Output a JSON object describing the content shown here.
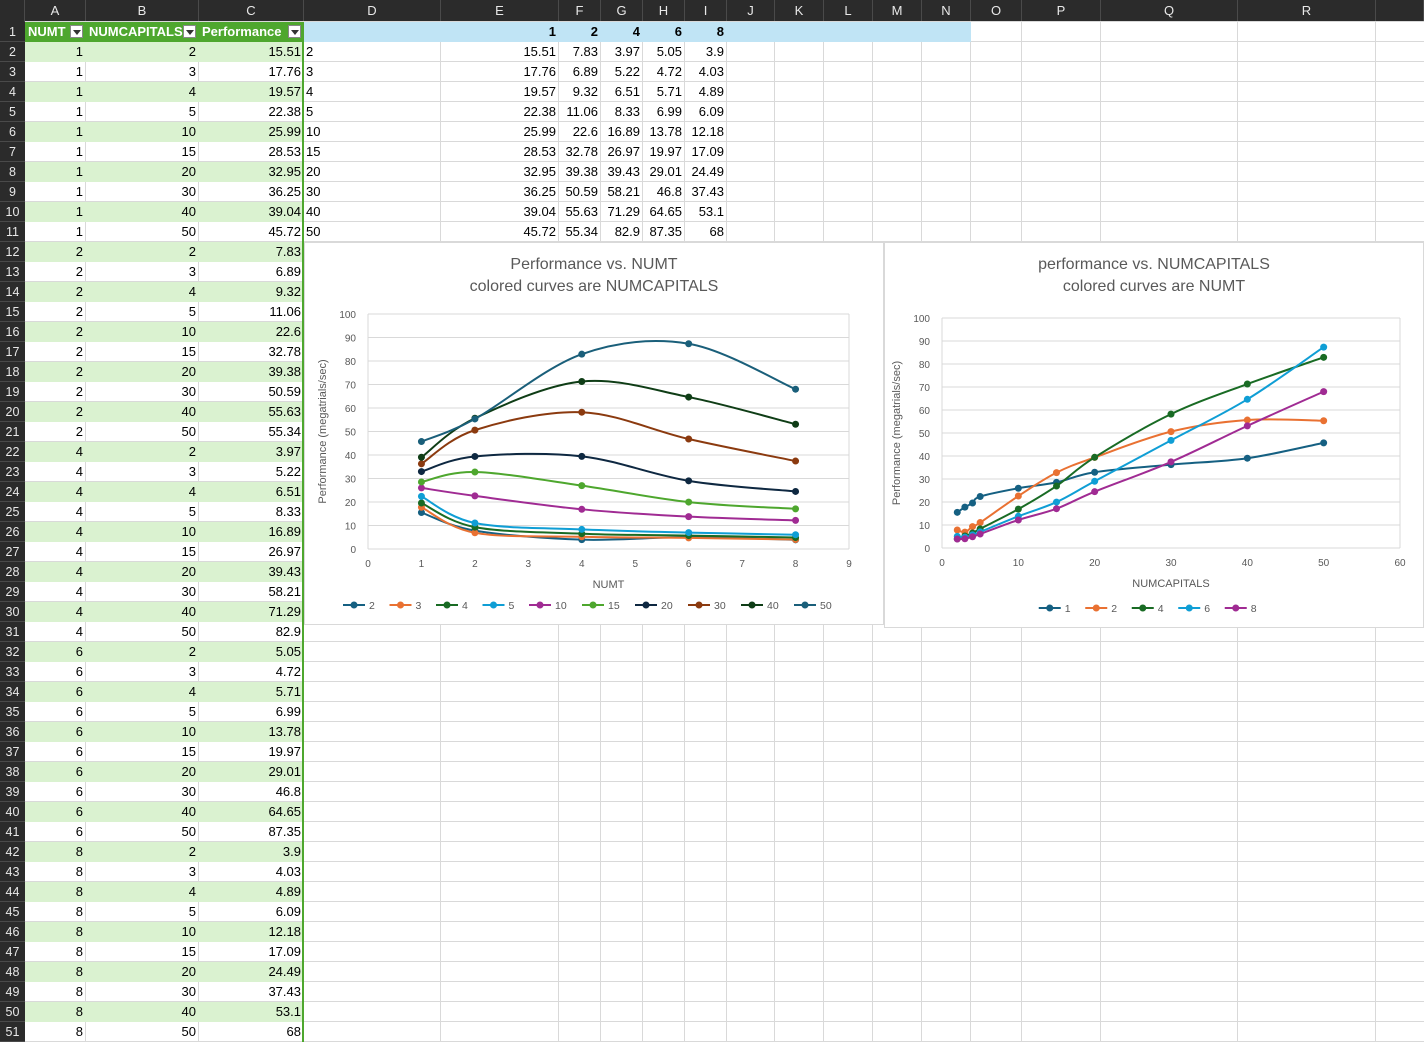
{
  "sheet": {
    "columns": [
      "A",
      "B",
      "C",
      "D",
      "E",
      "F",
      "G",
      "H",
      "I",
      "J",
      "K",
      "L",
      "M",
      "N",
      "O",
      "P",
      "Q",
      "R"
    ],
    "table_headers": [
      "NUMT",
      "NUMCAPITALS",
      "Performance"
    ],
    "table_rows": [
      [
        1,
        2,
        "15.51"
      ],
      [
        1,
        3,
        "17.76"
      ],
      [
        1,
        4,
        "19.57"
      ],
      [
        1,
        5,
        "22.38"
      ],
      [
        1,
        10,
        "25.99"
      ],
      [
        1,
        15,
        "28.53"
      ],
      [
        1,
        20,
        "32.95"
      ],
      [
        1,
        30,
        "36.25"
      ],
      [
        1,
        40,
        "39.04"
      ],
      [
        1,
        50,
        "45.72"
      ],
      [
        2,
        2,
        "7.83"
      ],
      [
        2,
        3,
        "6.89"
      ],
      [
        2,
        4,
        "9.32"
      ],
      [
        2,
        5,
        "11.06"
      ],
      [
        2,
        10,
        "22.6"
      ],
      [
        2,
        15,
        "32.78"
      ],
      [
        2,
        20,
        "39.38"
      ],
      [
        2,
        30,
        "50.59"
      ],
      [
        2,
        40,
        "55.63"
      ],
      [
        2,
        50,
        "55.34"
      ],
      [
        4,
        2,
        "3.97"
      ],
      [
        4,
        3,
        "5.22"
      ],
      [
        4,
        4,
        "6.51"
      ],
      [
        4,
        5,
        "8.33"
      ],
      [
        4,
        10,
        "16.89"
      ],
      [
        4,
        15,
        "26.97"
      ],
      [
        4,
        20,
        "39.43"
      ],
      [
        4,
        30,
        "58.21"
      ],
      [
        4,
        40,
        "71.29"
      ],
      [
        4,
        50,
        "82.9"
      ],
      [
        6,
        2,
        "5.05"
      ],
      [
        6,
        3,
        "4.72"
      ],
      [
        6,
        4,
        "5.71"
      ],
      [
        6,
        5,
        "6.99"
      ],
      [
        6,
        10,
        "13.78"
      ],
      [
        6,
        15,
        "19.97"
      ],
      [
        6,
        20,
        "29.01"
      ],
      [
        6,
        30,
        "46.8"
      ],
      [
        6,
        40,
        "64.65"
      ],
      [
        6,
        50,
        "87.35"
      ],
      [
        8,
        2,
        "3.9"
      ],
      [
        8,
        3,
        "4.03"
      ],
      [
        8,
        4,
        "4.89"
      ],
      [
        8,
        5,
        "6.09"
      ],
      [
        8,
        10,
        "12.18"
      ],
      [
        8,
        15,
        "17.09"
      ],
      [
        8,
        20,
        "24.49"
      ],
      [
        8,
        30,
        "37.43"
      ],
      [
        8,
        40,
        "53.1"
      ],
      [
        8,
        50,
        "68"
      ]
    ],
    "pivot_header": [
      "1",
      "2",
      "4",
      "6",
      "8"
    ],
    "pivot_labels": [
      "2",
      "3",
      "4",
      "5",
      "10",
      "15",
      "20",
      "30",
      "40",
      "50"
    ],
    "pivot_rows": [
      [
        "15.51",
        "7.83",
        "3.97",
        "5.05",
        "3.9"
      ],
      [
        "17.76",
        "6.89",
        "5.22",
        "4.72",
        "4.03"
      ],
      [
        "19.57",
        "9.32",
        "6.51",
        "5.71",
        "4.89"
      ],
      [
        "22.38",
        "11.06",
        "8.33",
        "6.99",
        "6.09"
      ],
      [
        "25.99",
        "22.6",
        "16.89",
        "13.78",
        "12.18"
      ],
      [
        "28.53",
        "32.78",
        "26.97",
        "19.97",
        "17.09"
      ],
      [
        "32.95",
        "39.38",
        "39.43",
        "29.01",
        "24.49"
      ],
      [
        "36.25",
        "50.59",
        "58.21",
        "46.8",
        "37.43"
      ],
      [
        "39.04",
        "55.63",
        "71.29",
        "64.65",
        "53.1"
      ],
      [
        "45.72",
        "55.34",
        "82.9",
        "87.35",
        "68"
      ]
    ],
    "colors": {
      "header_green": "#4ea72e",
      "band_green": "#daf2d0",
      "pivot_blue": "#c0e4f5",
      "grid": "#d9d9d9",
      "row_header_bg": "#2b2b2b"
    }
  },
  "chart_data": [
    {
      "type": "line",
      "title": "Performance vs. NUMT",
      "subtitle": "colored curves are NUMCAPITALS",
      "xlabel": "NUMT",
      "ylabel": "Performance (megatrials/sec)",
      "xlim": [
        0,
        9
      ],
      "ylim": [
        0,
        100
      ],
      "xticks": [
        "0",
        "1",
        "2",
        "3",
        "4",
        "5",
        "6",
        "7",
        "8",
        "9"
      ],
      "yticks": [
        "0",
        "10",
        "20",
        "30",
        "40",
        "50",
        "60",
        "70",
        "80",
        "90",
        "100"
      ],
      "grid": "horizontal",
      "legend": "bottom",
      "x": [
        1,
        2,
        4,
        6,
        8
      ],
      "series": [
        {
          "name": "2",
          "color": "#156082",
          "values": [
            15.51,
            7.83,
            3.97,
            5.05,
            3.9
          ]
        },
        {
          "name": "3",
          "color": "#e97132",
          "values": [
            17.76,
            6.89,
            5.22,
            4.72,
            4.03
          ]
        },
        {
          "name": "4",
          "color": "#196b24",
          "values": [
            19.57,
            9.32,
            6.51,
            5.71,
            4.89
          ]
        },
        {
          "name": "5",
          "color": "#0f9ed5",
          "values": [
            22.38,
            11.06,
            8.33,
            6.99,
            6.09
          ]
        },
        {
          "name": "10",
          "color": "#a02b93",
          "values": [
            25.99,
            22.6,
            16.89,
            13.78,
            12.18
          ]
        },
        {
          "name": "15",
          "color": "#4ea72e",
          "values": [
            28.53,
            32.78,
            26.97,
            19.97,
            17.09
          ]
        },
        {
          "name": "20",
          "color": "#0e2841",
          "values": [
            32.95,
            39.38,
            39.43,
            29.01,
            24.49
          ]
        },
        {
          "name": "30",
          "color": "#8b3a0f",
          "values": [
            36.25,
            50.59,
            58.21,
            46.8,
            37.43
          ]
        },
        {
          "name": "40",
          "color": "#0f3d16",
          "values": [
            39.04,
            55.63,
            71.29,
            64.65,
            53.1
          ]
        },
        {
          "name": "50",
          "color": "#1a5f7a",
          "values": [
            45.72,
            55.34,
            82.9,
            87.35,
            68
          ]
        }
      ]
    },
    {
      "type": "line",
      "title": "performance vs. NUMCAPITALS",
      "subtitle": "colored curves are NUMT",
      "xlabel": "NUMCAPITALS",
      "ylabel": "Performance (megatrials/sec)",
      "xlim": [
        0,
        60
      ],
      "ylim": [
        0,
        100
      ],
      "xticks": [
        "0",
        "10",
        "20",
        "30",
        "40",
        "50",
        "60"
      ],
      "yticks": [
        "0",
        "10",
        "20",
        "30",
        "40",
        "50",
        "60",
        "70",
        "80",
        "90",
        "100"
      ],
      "grid": "horizontal",
      "legend": "bottom",
      "x": [
        2,
        3,
        4,
        5,
        10,
        15,
        20,
        30,
        40,
        50
      ],
      "series": [
        {
          "name": "1",
          "color": "#156082",
          "values": [
            15.51,
            17.76,
            19.57,
            22.38,
            25.99,
            28.53,
            32.95,
            36.25,
            39.04,
            45.72
          ]
        },
        {
          "name": "2",
          "color": "#e97132",
          "values": [
            7.83,
            6.89,
            9.32,
            11.06,
            22.6,
            32.78,
            39.38,
            50.59,
            55.63,
            55.34
          ]
        },
        {
          "name": "4",
          "color": "#196b24",
          "values": [
            3.97,
            5.22,
            6.51,
            8.33,
            16.89,
            26.97,
            39.43,
            58.21,
            71.29,
            82.9
          ]
        },
        {
          "name": "6",
          "color": "#0f9ed5",
          "values": [
            5.05,
            4.72,
            5.71,
            6.99,
            13.78,
            19.97,
            29.01,
            46.8,
            64.65,
            87.35
          ]
        },
        {
          "name": "8",
          "color": "#a02b93",
          "values": [
            3.9,
            4.03,
            4.89,
            6.09,
            12.18,
            17.09,
            24.49,
            37.43,
            53.1,
            68
          ]
        }
      ]
    }
  ]
}
